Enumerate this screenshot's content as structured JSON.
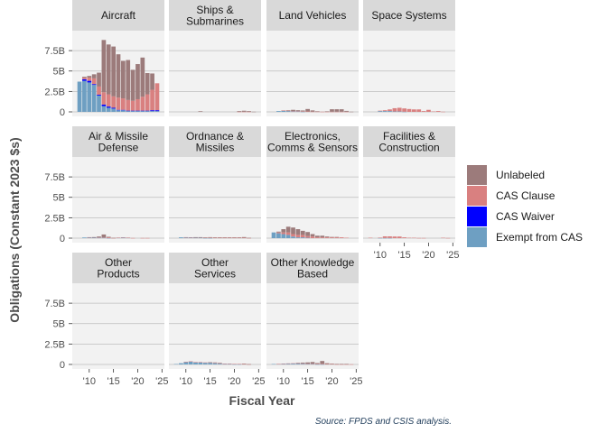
{
  "chart_data": {
    "type": "bar",
    "stacked": true,
    "facet": "wrap",
    "xlabel": "Fiscal Year",
    "ylabel": "Obligations (Constant 2023 $s)",
    "caption": "Source: FPDS and CSIS analysis.",
    "x": [
      2008,
      2009,
      2010,
      2011,
      2012,
      2013,
      2014,
      2015,
      2016,
      2017,
      2018,
      2019,
      2020,
      2021,
      2022,
      2023,
      2024
    ],
    "x_ticks": [
      {
        "value": 2010,
        "label": "'10"
      },
      {
        "value": 2015,
        "label": "'15"
      },
      {
        "value": 2020,
        "label": "'20"
      },
      {
        "value": 2025,
        "label": "'25"
      }
    ],
    "xlim": [
      2006.5,
      2025.5
    ],
    "ylim": [
      0,
      9.5
    ],
    "y_unit": "billions",
    "y_ticks": [
      {
        "value": 0,
        "label": "0"
      },
      {
        "value": 2.5,
        "label": "2.5B"
      },
      {
        "value": 5,
        "label": "5B"
      },
      {
        "value": 7.5,
        "label": "7.5B"
      }
    ],
    "legend": {
      "placement": "right",
      "items": [
        {
          "name": "Unlabeled",
          "color": "#9c7b7b"
        },
        {
          "name": "CAS Clause",
          "color": "#d98080"
        },
        {
          "name": "CAS Waiver",
          "color": "#0000ff"
        },
        {
          "name": "Exempt from CAS",
          "color": "#6e9fc2"
        }
      ]
    },
    "series_colors": {
      "exempt": "#6e9fc2",
      "waiver": "#0000ff",
      "clause": "#d98080",
      "unlabeled": "#9c7b7b"
    },
    "panels": [
      {
        "title": [
          "Aircraft"
        ],
        "series": {
          "exempt": [
            3.7,
            3.8,
            3.6,
            3.3,
            2.0,
            0.7,
            0.5,
            0.4,
            0.2,
            0.2,
            0.1,
            0.1,
            0.1,
            0.1,
            0.1,
            0.1,
            0.1
          ],
          "waiver": [
            0.0,
            0.2,
            0.2,
            0.1,
            0.1,
            0.2,
            0.15,
            0.1,
            0.05,
            0.05,
            0.05,
            0.05,
            0.05,
            0.05,
            0.05,
            0.1,
            0.1
          ],
          "clause": [
            0.0,
            0.2,
            0.4,
            0.7,
            1.0,
            1.5,
            1.5,
            1.4,
            1.5,
            1.4,
            1.3,
            1.2,
            1.4,
            1.7,
            2.0,
            2.5,
            3.3
          ],
          "unlabeled": [
            0.0,
            0.1,
            0.2,
            0.5,
            1.7,
            6.4,
            6.1,
            6.1,
            5.3,
            4.6,
            4.9,
            3.8,
            4.3,
            4.8,
            2.6,
            2.0,
            0.0
          ]
        }
      },
      {
        "title": [
          "Ships &",
          "Submarines"
        ],
        "series": {
          "exempt": [
            0,
            0,
            0,
            0,
            0,
            0,
            0,
            0,
            0,
            0,
            0,
            0,
            0,
            0,
            0,
            0,
            0
          ],
          "waiver": [
            0,
            0,
            0,
            0,
            0,
            0,
            0,
            0,
            0,
            0,
            0,
            0,
            0,
            0,
            0,
            0,
            0
          ],
          "clause": [
            0,
            0,
            0,
            0,
            0,
            0,
            0,
            0,
            0,
            0,
            0,
            0,
            0,
            0.02,
            0.02,
            0.02,
            0
          ],
          "unlabeled": [
            0,
            0,
            0,
            0,
            0,
            0.08,
            0,
            0,
            0,
            0,
            0,
            0,
            0,
            0.08,
            0.12,
            0.08,
            0.02
          ]
        }
      },
      {
        "title": [
          "Land Vehicles"
        ],
        "series": {
          "exempt": [
            0,
            0.1,
            0.15,
            0.1,
            0.05,
            0.05,
            0.02,
            0,
            0,
            0,
            0,
            0,
            0,
            0,
            0,
            0,
            0
          ],
          "waiver": [
            0,
            0,
            0,
            0,
            0,
            0,
            0,
            0,
            0,
            0,
            0,
            0,
            0,
            0,
            0,
            0,
            0
          ],
          "clause": [
            0,
            0,
            0.03,
            0.05,
            0.05,
            0.05,
            0.05,
            0.05,
            0.03,
            0.03,
            0.02,
            0.02,
            0.02,
            0.02,
            0.02,
            0.02,
            0
          ],
          "unlabeled": [
            0,
            0,
            0,
            0.05,
            0.15,
            0.1,
            0.1,
            0.3,
            0.15,
            0.05,
            0,
            0.05,
            0.3,
            0.3,
            0.3,
            0.1,
            0.02
          ]
        }
      },
      {
        "title": [
          "Space Systems"
        ],
        "series": {
          "exempt": [
            0,
            0,
            0.1,
            0.1,
            0.1,
            0.05,
            0.05,
            0.02,
            0,
            0,
            0,
            0,
            0,
            0,
            0,
            0,
            0
          ],
          "waiver": [
            0,
            0,
            0,
            0,
            0,
            0,
            0,
            0,
            0,
            0,
            0,
            0,
            0,
            0,
            0,
            0,
            0
          ],
          "clause": [
            0,
            0,
            0.05,
            0.1,
            0.2,
            0.4,
            0.45,
            0.4,
            0.35,
            0.3,
            0.3,
            0.1,
            0.25,
            0.05,
            0.1,
            0.02,
            0
          ],
          "unlabeled": [
            0,
            0,
            0,
            0,
            0,
            0,
            0,
            0,
            0,
            0,
            0,
            0,
            0,
            0,
            0,
            0,
            0
          ]
        }
      },
      {
        "title": [
          "Air & Missile",
          "Defense"
        ],
        "series": {
          "exempt": [
            0,
            0.08,
            0.1,
            0.08,
            0.05,
            0.05,
            0.02,
            0,
            0.05,
            0.08,
            0.05,
            0,
            0,
            0,
            0,
            0,
            0
          ],
          "waiver": [
            0,
            0,
            0,
            0,
            0,
            0,
            0,
            0,
            0,
            0,
            0,
            0,
            0,
            0,
            0,
            0,
            0
          ],
          "clause": [
            0,
            0,
            0.02,
            0.03,
            0.05,
            0.05,
            0.1,
            0.02,
            0.02,
            0.02,
            0.02,
            0.02,
            0,
            0.02,
            0.02,
            0,
            0
          ],
          "unlabeled": [
            0,
            0,
            0,
            0.02,
            0.1,
            0.35,
            0.05,
            0.02,
            0,
            0,
            0,
            0,
            0,
            0,
            0,
            0,
            0
          ]
        }
      },
      {
        "title": [
          "Ordnance &",
          "Missiles"
        ],
        "series": {
          "exempt": [
            0,
            0.1,
            0.1,
            0.08,
            0.05,
            0.05,
            0.02,
            0.02,
            0,
            0,
            0,
            0,
            0,
            0,
            0,
            0,
            0
          ],
          "waiver": [
            0,
            0,
            0,
            0,
            0,
            0,
            0,
            0,
            0,
            0,
            0,
            0,
            0,
            0,
            0,
            0,
            0
          ],
          "clause": [
            0,
            0,
            0.02,
            0.03,
            0.05,
            0.05,
            0.05,
            0.05,
            0.05,
            0.05,
            0.05,
            0.05,
            0.05,
            0.05,
            0.05,
            0.02,
            0
          ],
          "unlabeled": [
            0,
            0,
            0,
            0,
            0.02,
            0.02,
            0.02,
            0.05,
            0.05,
            0.05,
            0.05,
            0.05,
            0.05,
            0.05,
            0.08,
            0.02,
            0
          ]
        }
      },
      {
        "title": [
          "Electronics,",
          "Comms & Sensors"
        ],
        "series": {
          "exempt": [
            0.7,
            0.6,
            0.5,
            0.4,
            0.2,
            0.1,
            0.1,
            0.05,
            0,
            0,
            0,
            0,
            0,
            0,
            0,
            0,
            0
          ],
          "waiver": [
            0,
            0,
            0,
            0,
            0,
            0,
            0,
            0,
            0,
            0,
            0,
            0,
            0,
            0,
            0,
            0,
            0
          ],
          "clause": [
            0,
            0.1,
            0.2,
            0.3,
            0.3,
            0.3,
            0.3,
            0.2,
            0.2,
            0.1,
            0.1,
            0.1,
            0.1,
            0.1,
            0.1,
            0.05,
            0
          ],
          "unlabeled": [
            0,
            0.1,
            0.4,
            0.7,
            0.8,
            0.7,
            0.5,
            0.5,
            0.3,
            0.2,
            0.2,
            0.1,
            0.05,
            0.05,
            0,
            0,
            0
          ]
        }
      },
      {
        "title": [
          "Facilities &",
          "Construction"
        ],
        "series": {
          "exempt": [
            0,
            0,
            0.02,
            0.02,
            0.02,
            0,
            0,
            0,
            0,
            0,
            0,
            0,
            0,
            0,
            0,
            0,
            0
          ],
          "waiver": [
            0,
            0,
            0,
            0,
            0,
            0,
            0,
            0,
            0,
            0,
            0,
            0,
            0,
            0,
            0,
            0,
            0
          ],
          "clause": [
            0.05,
            0,
            0.05,
            0.2,
            0.2,
            0.2,
            0.2,
            0.1,
            0.05,
            0.05,
            0.02,
            0.02,
            0,
            0,
            0,
            0.05,
            0.02
          ],
          "unlabeled": [
            0,
            0,
            0,
            0,
            0,
            0,
            0,
            0,
            0,
            0,
            0,
            0,
            0,
            0,
            0,
            0,
            0
          ]
        }
      },
      {
        "title": [
          "Other",
          "Products"
        ],
        "series": {
          "exempt": [
            0,
            0,
            0,
            0,
            0,
            0,
            0,
            0,
            0,
            0,
            0,
            0,
            0,
            0,
            0,
            0,
            0
          ],
          "waiver": [
            0,
            0,
            0,
            0,
            0,
            0,
            0,
            0,
            0,
            0,
            0,
            0,
            0,
            0,
            0,
            0,
            0
          ],
          "clause": [
            0,
            0,
            0,
            0,
            0,
            0,
            0,
            0,
            0,
            0,
            0,
            0,
            0,
            0,
            0,
            0,
            0
          ],
          "unlabeled": [
            0,
            0,
            0,
            0,
            0,
            0,
            0,
            0,
            0,
            0,
            0,
            0,
            0,
            0,
            0,
            0,
            0
          ]
        }
      },
      {
        "title": [
          "Other",
          "Services"
        ],
        "series": {
          "exempt": [
            0.05,
            0.15,
            0.3,
            0.35,
            0.25,
            0.25,
            0.2,
            0.2,
            0.15,
            0.1,
            0.05,
            0.05,
            0.02,
            0.02,
            0,
            0,
            0
          ],
          "waiver": [
            0,
            0,
            0,
            0,
            0,
            0,
            0,
            0,
            0,
            0,
            0,
            0,
            0,
            0,
            0,
            0,
            0
          ],
          "clause": [
            0,
            0,
            0.02,
            0.03,
            0.05,
            0.05,
            0.05,
            0.05,
            0.05,
            0.05,
            0.05,
            0.05,
            0.05,
            0.05,
            0.05,
            0.02,
            0
          ],
          "unlabeled": [
            0,
            0,
            0,
            0,
            0,
            0,
            0,
            0.02,
            0.05,
            0.05,
            0,
            0,
            0,
            0,
            0.05,
            0.02,
            0
          ]
        }
      },
      {
        "title": [
          "Other Knowledge",
          "Based"
        ],
        "series": {
          "exempt": [
            0.05,
            0.05,
            0.08,
            0.1,
            0.1,
            0.1,
            0.08,
            0.05,
            0.05,
            0.02,
            0.02,
            0,
            0,
            0,
            0,
            0,
            0
          ],
          "waiver": [
            0,
            0,
            0,
            0,
            0,
            0,
            0,
            0,
            0,
            0,
            0,
            0,
            0,
            0,
            0,
            0,
            0
          ],
          "clause": [
            0,
            0.02,
            0.02,
            0.03,
            0.05,
            0.05,
            0.05,
            0.05,
            0.05,
            0.05,
            0.05,
            0.05,
            0.05,
            0.02,
            0.02,
            0.02,
            0.02
          ],
          "unlabeled": [
            0,
            0,
            0,
            0,
            0,
            0.05,
            0.1,
            0.15,
            0.2,
            0.1,
            0.35,
            0.1,
            0.05,
            0.05,
            0.05,
            0.05,
            0
          ]
        }
      }
    ]
  }
}
